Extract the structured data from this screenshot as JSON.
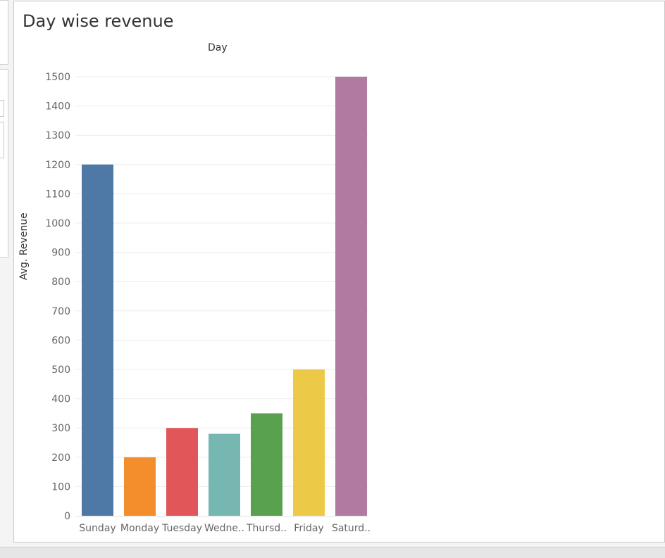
{
  "dashboard": {
    "title": "Day wise revenue",
    "column_header": "Day",
    "y_axis_title": "Avg. Revenue"
  },
  "chart_data": {
    "type": "bar",
    "xlabel": "Day",
    "ylabel": "Avg. Revenue",
    "categories": [
      "Sunday",
      "Monday",
      "Tuesday",
      "Wedne..",
      "Thursd..",
      "Friday",
      "Saturd.."
    ],
    "values": [
      1200,
      200,
      300,
      280,
      350,
      500,
      1500
    ],
    "colors": [
      "#4e79a7",
      "#f28e2b",
      "#e15759",
      "#76b7b2",
      "#59a14f",
      "#edc948",
      "#b07aa1"
    ],
    "ylim": [
      0,
      1500
    ],
    "yticks": [
      0,
      100,
      200,
      300,
      400,
      500,
      600,
      700,
      800,
      900,
      1000,
      1100,
      1200,
      1300,
      1400,
      1500
    ],
    "grid": true,
    "legend": "none"
  }
}
